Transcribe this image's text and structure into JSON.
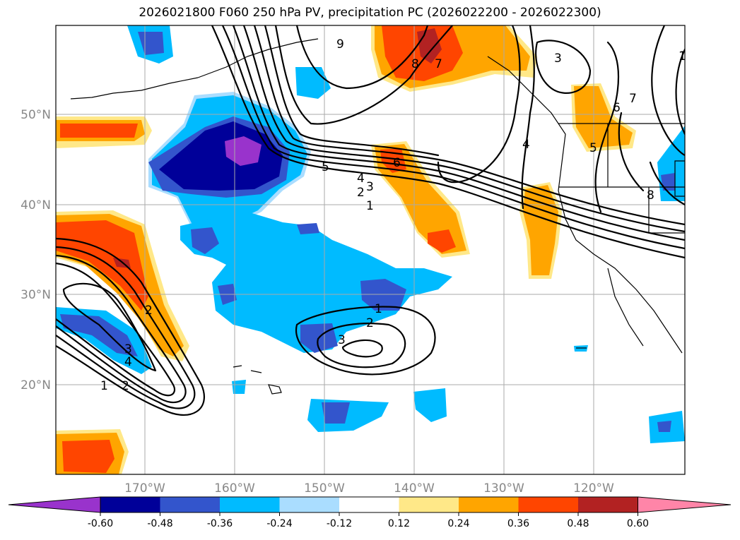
{
  "title": "2026021800 F060 250 hPa PV, precipitation PC (2026022200 - 2026022300)",
  "lat_labels": [
    "50°N",
    "40°N",
    "30°N",
    "20°N"
  ],
  "lon_labels": [
    "170°W",
    "160°W",
    "150°W",
    "140°W",
    "130°W",
    "120°W"
  ],
  "colorbar": {
    "ticks": [
      "-0.60",
      "-0.48",
      "-0.36",
      "-0.24",
      "-0.12",
      "0.12",
      "0.24",
      "0.36",
      "0.48",
      "0.60"
    ],
    "colors": [
      "#9933cc",
      "#000099",
      "#3355cc",
      "#00bbff",
      "#aaddff",
      "#ffffff",
      "#ffe888",
      "#ffa500",
      "#ff4500",
      "#b22222",
      "#ff85a8"
    ]
  },
  "contour_labels": [
    "1",
    "2",
    "3",
    "4",
    "5",
    "6",
    "7",
    "8",
    "9",
    "1",
    "2",
    "3",
    "4",
    "5",
    "6",
    "7",
    "8",
    "3",
    "4",
    "1",
    "2",
    "3",
    "1",
    "2",
    "3",
    "4",
    "5"
  ]
}
